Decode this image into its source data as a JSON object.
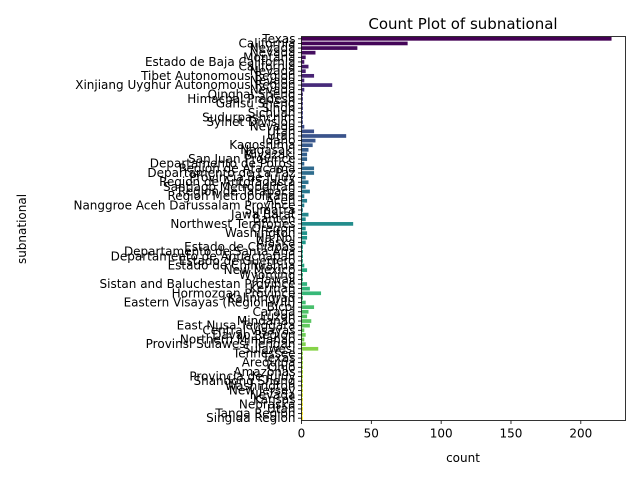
{
  "chart_data": {
    "type": "bar",
    "orientation": "horizontal",
    "title": "Count Plot of subnational",
    "xlabel": "count",
    "ylabel": "subnational",
    "xlim": [
      0,
      232
    ],
    "xticks": [
      0,
      50,
      100,
      150,
      200
    ],
    "grid": false,
    "legend": "none",
    "palette": "viridis",
    "categories": [
      "Texas",
      "California",
      "Nevada",
      "Nevada",
      "Montana",
      "Estado de Baja California",
      "California",
      "Nevada",
      "Tibet Autonomous Region",
      "Nevada",
      "Xinjiang Uyghur Autonomous Region",
      "Nevada",
      "Qinghai Sheng",
      "Himachal Pradesh",
      "Gansu Sheng",
      "Sindh",
      "Sichuan",
      "Sudurpashchim",
      "Sylhet Division",
      "Nevada",
      "Utah",
      "Utah",
      "Idaho",
      "Kagoshima",
      "Nagasaki",
      "Miyazaki",
      "San Juan Province",
      "Departamento de Potosi",
      "Region de Atacama",
      "Departamento de La Paz",
      "Provincia de Jujuy",
      "Region de Antofagasta",
      "Santiago Metropolitan",
      "Region de Tarapaca",
      "Region Metropolitana",
      "Aceh",
      "Nanggroe Aceh Darussalam Province",
      "Sumatra",
      "Jawa Barat",
      "Banten",
      "Northwest Territories",
      "Oregon",
      "Washington",
      "Ha Noi",
      "Alaska",
      "Estado de Chiapas",
      "Departamento de Santa Ana",
      "Departamento de Ahuachapan",
      "Estado de Guerrero",
      "Estado de Chihuahua",
      "New Mexico",
      "Wyoming",
      "Hawaii",
      "Sistan and Baluchestan Province",
      "Kerman",
      "Hormozgan Province",
      "Kaliningrad",
      "Eastern Visayas (Region VIII)",
      "Bicol",
      "Caraga",
      "Luzon",
      "Mindanao",
      "East Nusa Tenggara",
      "Central Visayas",
      "Davao Region",
      "Northern Mindanao",
      "Provinsi Sulawesi Tengah",
      "Sulawesi",
      "Tennessee",
      "Texas",
      "Arequipa",
      "Ohio",
      "Amazonas",
      "Provincia de Jujuy",
      "Shandong Sheng",
      "Washington",
      "New Jersey",
      "Nevada",
      "Kansas",
      "Nebraska",
      "Utah",
      "Tanga Region",
      "Singida Region"
    ],
    "values": [
      222,
      76,
      40,
      10,
      3,
      2,
      5,
      3,
      9,
      2,
      22,
      2,
      1,
      1,
      1,
      1,
      1,
      1,
      1,
      2,
      9,
      32,
      10,
      8,
      5,
      4,
      4,
      2,
      9,
      9,
      3,
      5,
      3,
      6,
      2,
      4,
      2,
      1,
      5,
      3,
      37,
      3,
      4,
      4,
      3,
      1,
      1,
      1,
      1,
      2,
      4,
      1,
      1,
      4,
      6,
      14,
      1,
      3,
      9,
      5,
      4,
      7,
      6,
      2,
      3,
      2,
      3,
      12,
      1,
      1,
      1,
      1,
      1,
      1,
      1,
      1,
      1,
      1,
      1,
      1,
      1,
      1,
      1
    ]
  }
}
